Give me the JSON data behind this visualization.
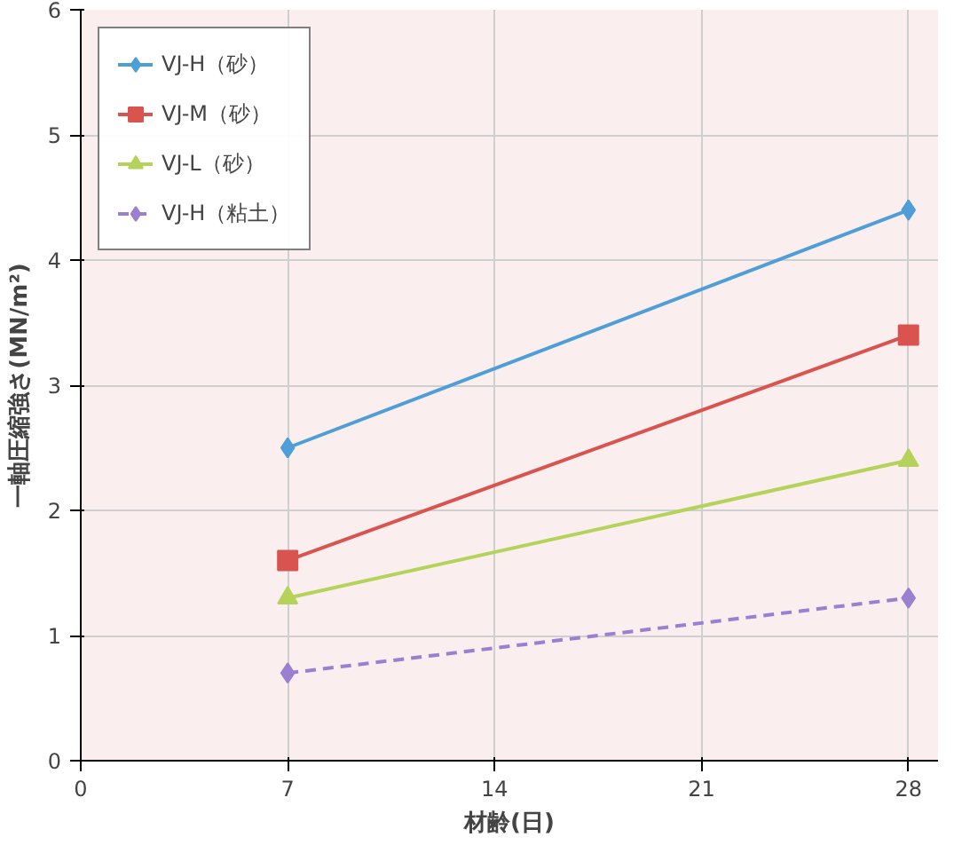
{
  "chart_data": {
    "type": "line",
    "xlabel": "材齢(日)",
    "ylabel": "一軸圧縮強さ(MN/m²)",
    "xlim": [
      0,
      29
    ],
    "ylim": [
      0,
      6
    ],
    "xticks": [
      0,
      7,
      14,
      21,
      28
    ],
    "yticks": [
      0,
      1,
      2,
      3,
      4,
      5,
      6
    ],
    "grid": true,
    "legend": "top left",
    "x": [
      7,
      28
    ],
    "series": [
      {
        "name": "VJ-H（砂）",
        "color": "#4f9ed8",
        "values": [
          2.5,
          4.4
        ],
        "marker": "diamond",
        "line_style": "solid"
      },
      {
        "name": "VJ-M（砂）",
        "color": "#d9534f",
        "values": [
          1.6,
          3.4
        ],
        "marker": "square",
        "line_style": "solid"
      },
      {
        "name": "VJ-L（砂）",
        "color": "#b5d35a",
        "values": [
          1.3,
          2.4
        ],
        "marker": "triangle",
        "line_style": "solid"
      },
      {
        "name": "VJ-H（粘土）",
        "color": "#9b7fd0",
        "values": [
          0.7,
          1.3
        ],
        "marker": "diamond",
        "line_style": "dashed"
      }
    ]
  }
}
